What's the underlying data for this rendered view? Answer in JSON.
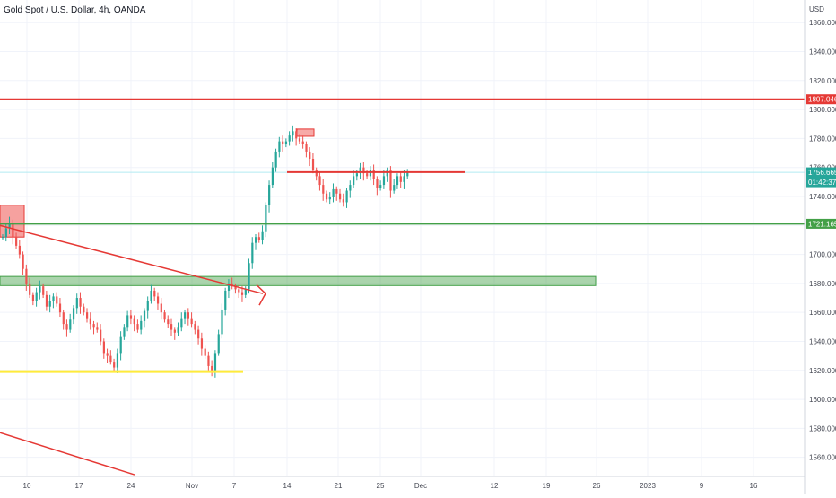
{
  "header": {
    "title": "Gold Spot / U.S. Dollar, 4h, OANDA",
    "currency": "USD"
  },
  "colors": {
    "up": "#26a69a",
    "down": "#ef5350",
    "bg": "#ffffff",
    "grid": "#f0f3fa",
    "red_line": "#e53935",
    "green_line": "#43a047",
    "yellow_line": "#ffeb3b",
    "price_tag": "#26a69a",
    "cyan_line": "#b2ebf2"
  },
  "chart_data": {
    "type": "candlestick",
    "title": "Gold Spot / U.S. Dollar, 4h, OANDA",
    "ylabel": "USD",
    "ylim": [
      1546.8,
      1875.6
    ],
    "y_ticks": [
      1560,
      1580,
      1600,
      1620,
      1640,
      1660,
      1680,
      1700,
      1720,
      1740,
      1760,
      1780,
      1800,
      1820,
      1840,
      1860
    ],
    "y_tick_labels": [
      "1560.000",
      "1580.000",
      "1600.000",
      "1620.000",
      "1640.000",
      "1660.000",
      "1680.000",
      "1700.000",
      "1720.000",
      "1740.000",
      "1760.000",
      "1780.000",
      "1800.000",
      "1820.000",
      "1840.000",
      "1860.000"
    ],
    "x_labels": [
      "10",
      "17",
      "24",
      "Nov",
      "7",
      "14",
      "21",
      "25",
      "Dec",
      "12",
      "19",
      "26",
      "2023",
      "9",
      "16"
    ],
    "price_tags": [
      {
        "label": "1807.046",
        "value": 1807.046,
        "color": "#e53935"
      },
      {
        "label": "1756.665",
        "sub": "01:42:37",
        "value": 1756.665,
        "color": "#26a69a"
      },
      {
        "label": "1721.165",
        "value": 1721.165,
        "color": "#43a047"
      }
    ],
    "horizontal_lines": [
      {
        "name": "resistance",
        "value": 1807.046,
        "color": "#e53935"
      },
      {
        "name": "support",
        "value": 1721.165,
        "color": "#43a047"
      }
    ],
    "zones": [
      {
        "name": "green-zone",
        "from": 1678.5,
        "to": 1684.8,
        "color": "#43a047"
      },
      {
        "name": "yellow-line",
        "value": 1619.2,
        "color": "#ffeb3b"
      }
    ],
    "candles_close_path": [
      1712,
      1718,
      1722,
      1712,
      1706,
      1700,
      1690,
      1680,
      1672,
      1668,
      1674,
      1678,
      1672,
      1664,
      1668,
      1671,
      1666,
      1660,
      1652,
      1648,
      1655,
      1663,
      1670,
      1664,
      1660,
      1656,
      1652,
      1650,
      1648,
      1640,
      1632,
      1630,
      1626,
      1622,
      1632,
      1643,
      1650,
      1658,
      1656,
      1652,
      1648,
      1654,
      1661,
      1668,
      1675,
      1671,
      1666,
      1660,
      1655,
      1652,
      1648,
      1646,
      1650,
      1656,
      1660,
      1656,
      1652,
      1648,
      1642,
      1635,
      1630,
      1623,
      1620,
      1632,
      1645,
      1662,
      1675,
      1680,
      1678,
      1676,
      1674,
      1672,
      1676,
      1694,
      1708,
      1712,
      1710,
      1716,
      1734,
      1748,
      1760,
      1771,
      1778,
      1776,
      1778,
      1782,
      1785,
      1780,
      1778,
      1776,
      1771,
      1766,
      1758,
      1754,
      1748,
      1742,
      1738,
      1740,
      1745,
      1742,
      1738,
      1736,
      1744,
      1748,
      1754,
      1756,
      1760,
      1756,
      1754,
      1758,
      1752,
      1746,
      1748,
      1754,
      1758,
      1744,
      1748,
      1754,
      1750,
      1754,
      1757
    ]
  }
}
